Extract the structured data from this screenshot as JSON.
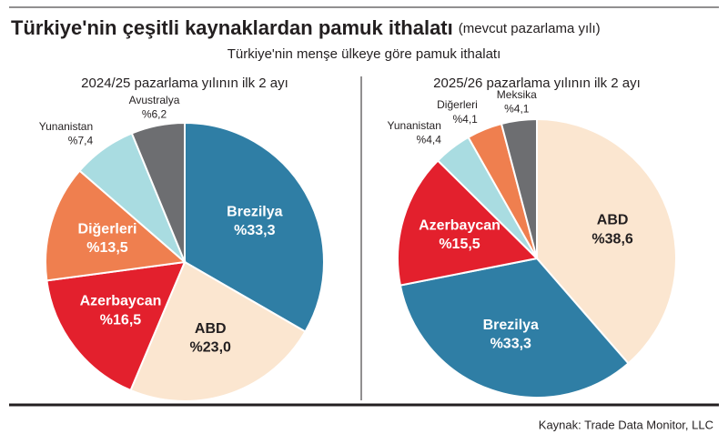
{
  "header": {
    "title": "Türkiye'nin çeşitli kaynaklardan pamuk ithalatı",
    "title_note": "(mevcut pazarlama yılı)",
    "subtitle": "Türkiye'nin menşe ülkeye göre pamuk ithalatı"
  },
  "source": "Kaynak: Trade Data Monitor, LLC",
  "chart_data": [
    {
      "type": "pie",
      "title": "2024/25 pazarlama yılının ilk 2 ayı",
      "categories": [
        "Brezilya",
        "ABD",
        "Azerbaycan",
        "Diğerleri",
        "Yunanistan",
        "Avustralya"
      ],
      "values": [
        33.3,
        23.0,
        16.5,
        13.5,
        7.4,
        6.2
      ],
      "value_labels": [
        "%33,3",
        "%23,0",
        "%16,5",
        "%13,5",
        "%7,4",
        "%6,2"
      ],
      "colors": [
        "#2f7ea5",
        "#fbe6d0",
        "#e3202d",
        "#ef7f4f",
        "#a9dce1",
        "#6d6e71"
      ]
    },
    {
      "type": "pie",
      "title": "2025/26 pazarlama yılının ilk 2 ayı",
      "categories": [
        "ABD",
        "Brezilya",
        "Azerbaycan",
        "Yunanistan",
        "Diğerleri",
        "Meksika"
      ],
      "values": [
        38.6,
        33.3,
        15.5,
        4.4,
        4.1,
        4.1
      ],
      "value_labels": [
        "%38,6",
        "%33,3",
        "%15,5",
        "%4,4",
        "%4,1",
        "%4,1"
      ],
      "colors": [
        "#fbe6d0",
        "#2f7ea5",
        "#e3202d",
        "#a9dce1",
        "#ef7f4f",
        "#6d6e71"
      ]
    }
  ]
}
